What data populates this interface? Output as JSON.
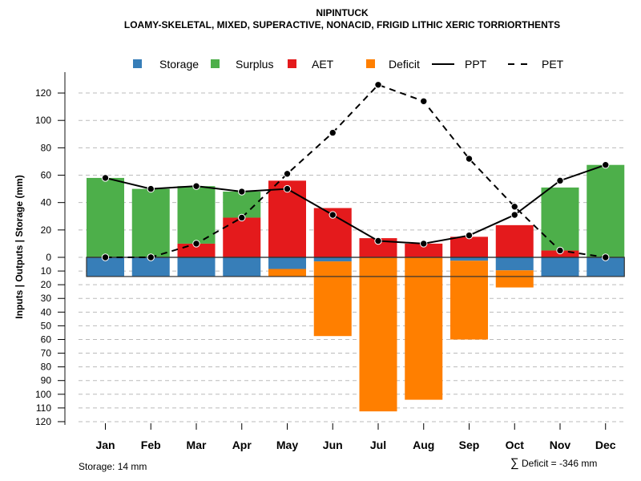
{
  "chart_data": {
    "type": "bar",
    "title": "NIPINTUCK",
    "subtitle": "LOAMY-SKELETAL, MIXED, SUPERACTIVE, NONACID, FRIGID LITHIC XERIC TORRIORTHENTS",
    "ylabel": "Inputs | Outputs | Storage    (mm)",
    "xlabel": "",
    "categories": [
      "Jan",
      "Feb",
      "Mar",
      "Apr",
      "May",
      "Jun",
      "Jul",
      "Aug",
      "Sep",
      "Oct",
      "Nov",
      "Dec"
    ],
    "ylim": [
      -120,
      130
    ],
    "yticks_positive": [
      0,
      20,
      40,
      60,
      80,
      100,
      120
    ],
    "yticks_negative": [
      10,
      20,
      30,
      40,
      50,
      60,
      70,
      80,
      90,
      100,
      110,
      120
    ],
    "grid": true,
    "legend_position": "top",
    "legend": [
      {
        "name": "Storage",
        "kind": "box",
        "color": "#377EB8"
      },
      {
        "name": "Surplus",
        "kind": "box",
        "color": "#4DAF4A"
      },
      {
        "name": "AET",
        "kind": "box",
        "color": "#E41A1C"
      },
      {
        "name": "Deficit",
        "kind": "box",
        "color": "#FF7F00"
      },
      {
        "name": "PPT",
        "kind": "solid-line",
        "color": "#000000"
      },
      {
        "name": "PET",
        "kind": "dashed-line",
        "color": "#000000"
      }
    ],
    "series": [
      {
        "name": "AET",
        "color": "#E41A1C",
        "values": [
          0,
          0,
          10,
          29,
          56,
          36,
          14,
          10,
          15,
          23.5,
          5,
          0
        ]
      },
      {
        "name": "Surplus",
        "color": "#4DAF4A",
        "values": [
          58,
          50,
          42,
          19,
          0,
          0,
          0,
          0,
          0,
          0,
          46,
          67.5
        ]
      },
      {
        "name": "Storage",
        "color": "#377EB8",
        "values": [
          -14,
          -14,
          -14,
          -14,
          -8.5,
          -3,
          0,
          0,
          -2.5,
          -9.5,
          -14,
          -14
        ]
      },
      {
        "name": "Deficit",
        "color": "#FF7F00",
        "values": [
          0,
          0,
          0,
          0,
          -5.5,
          -54.5,
          -112.5,
          -104,
          -57.5,
          -12.5,
          0,
          0
        ]
      },
      {
        "name": "PPT",
        "color": "#000000",
        "values": [
          58,
          50,
          52,
          48,
          50,
          31,
          12,
          10,
          16,
          31,
          56,
          67.5
        ]
      },
      {
        "name": "PET",
        "color": "#000000",
        "values": [
          0,
          0,
          10,
          29,
          61,
          91,
          126,
          114,
          72,
          37,
          5,
          0
        ]
      }
    ],
    "storage_capacity": 14,
    "annotations": {
      "storage_note": "Storage: 14 mm",
      "deficit_symbol": "∑",
      "deficit_note": "Deficit = -346 mm"
    }
  }
}
